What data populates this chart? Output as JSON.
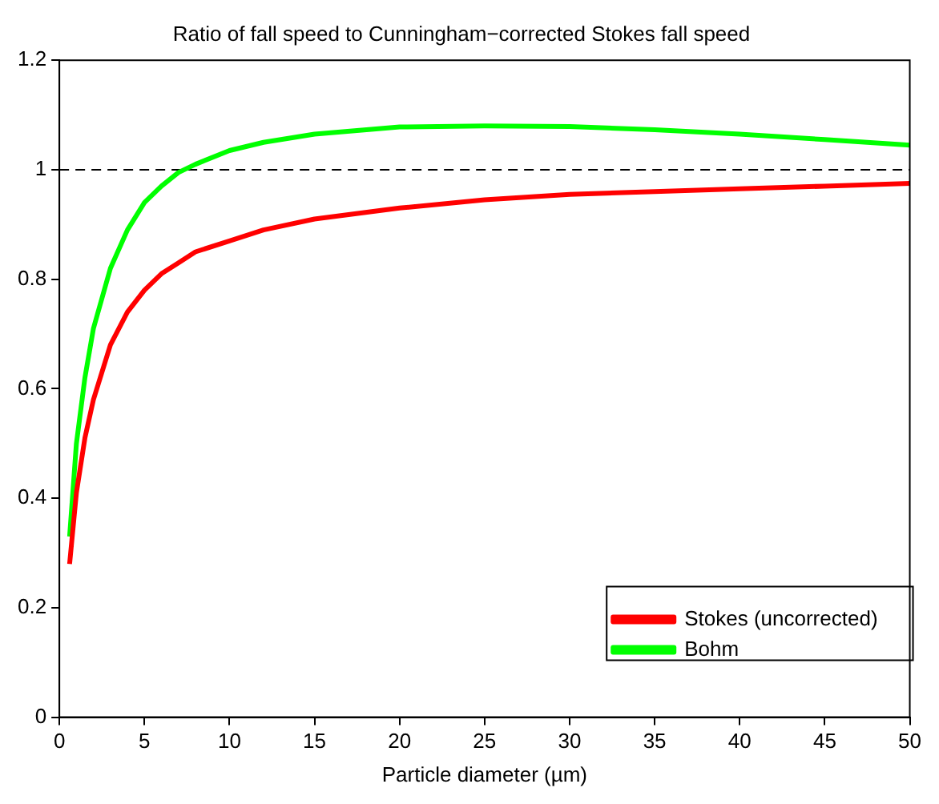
{
  "chart_data": {
    "type": "line",
    "title": "Ratio of fall speed to Cunningham−corrected Stokes fall speed",
    "xlabel": "Particle diameter (µm)",
    "x": [
      0.6,
      1,
      1.5,
      2,
      3,
      4,
      5,
      6,
      7,
      8,
      10,
      12,
      15,
      20,
      25,
      30,
      35,
      40,
      45,
      50
    ],
    "series": [
      {
        "name": "Stokes (uncorrected)",
        "color": "#ff0000",
        "values": [
          0.28,
          0.41,
          0.51,
          0.58,
          0.68,
          0.74,
          0.78,
          0.81,
          0.83,
          0.85,
          0.87,
          0.89,
          0.91,
          0.93,
          0.945,
          0.955,
          0.96,
          0.965,
          0.97,
          0.975
        ]
      },
      {
        "name": "Bohm",
        "color": "#00ff00",
        "values": [
          0.33,
          0.5,
          0.62,
          0.71,
          0.82,
          0.89,
          0.94,
          0.97,
          0.995,
          1.01,
          1.035,
          1.05,
          1.065,
          1.078,
          1.08,
          1.079,
          1.073,
          1.065,
          1.055,
          1.045
        ]
      }
    ],
    "xlim": [
      0,
      50
    ],
    "xticks": [
      0,
      5,
      10,
      15,
      20,
      25,
      30,
      35,
      40,
      45,
      50
    ],
    "ylim": [
      0,
      1.2
    ],
    "yticks": [
      0,
      0.2,
      0.4,
      0.6,
      0.8,
      1,
      1.2
    ],
    "ref_lines": [
      {
        "axis": "y",
        "value": 1,
        "color": "#000000",
        "line_style": "dashed"
      }
    ],
    "grid": false,
    "legend": "bottom right",
    "marker": "none",
    "line_style": "solid"
  }
}
